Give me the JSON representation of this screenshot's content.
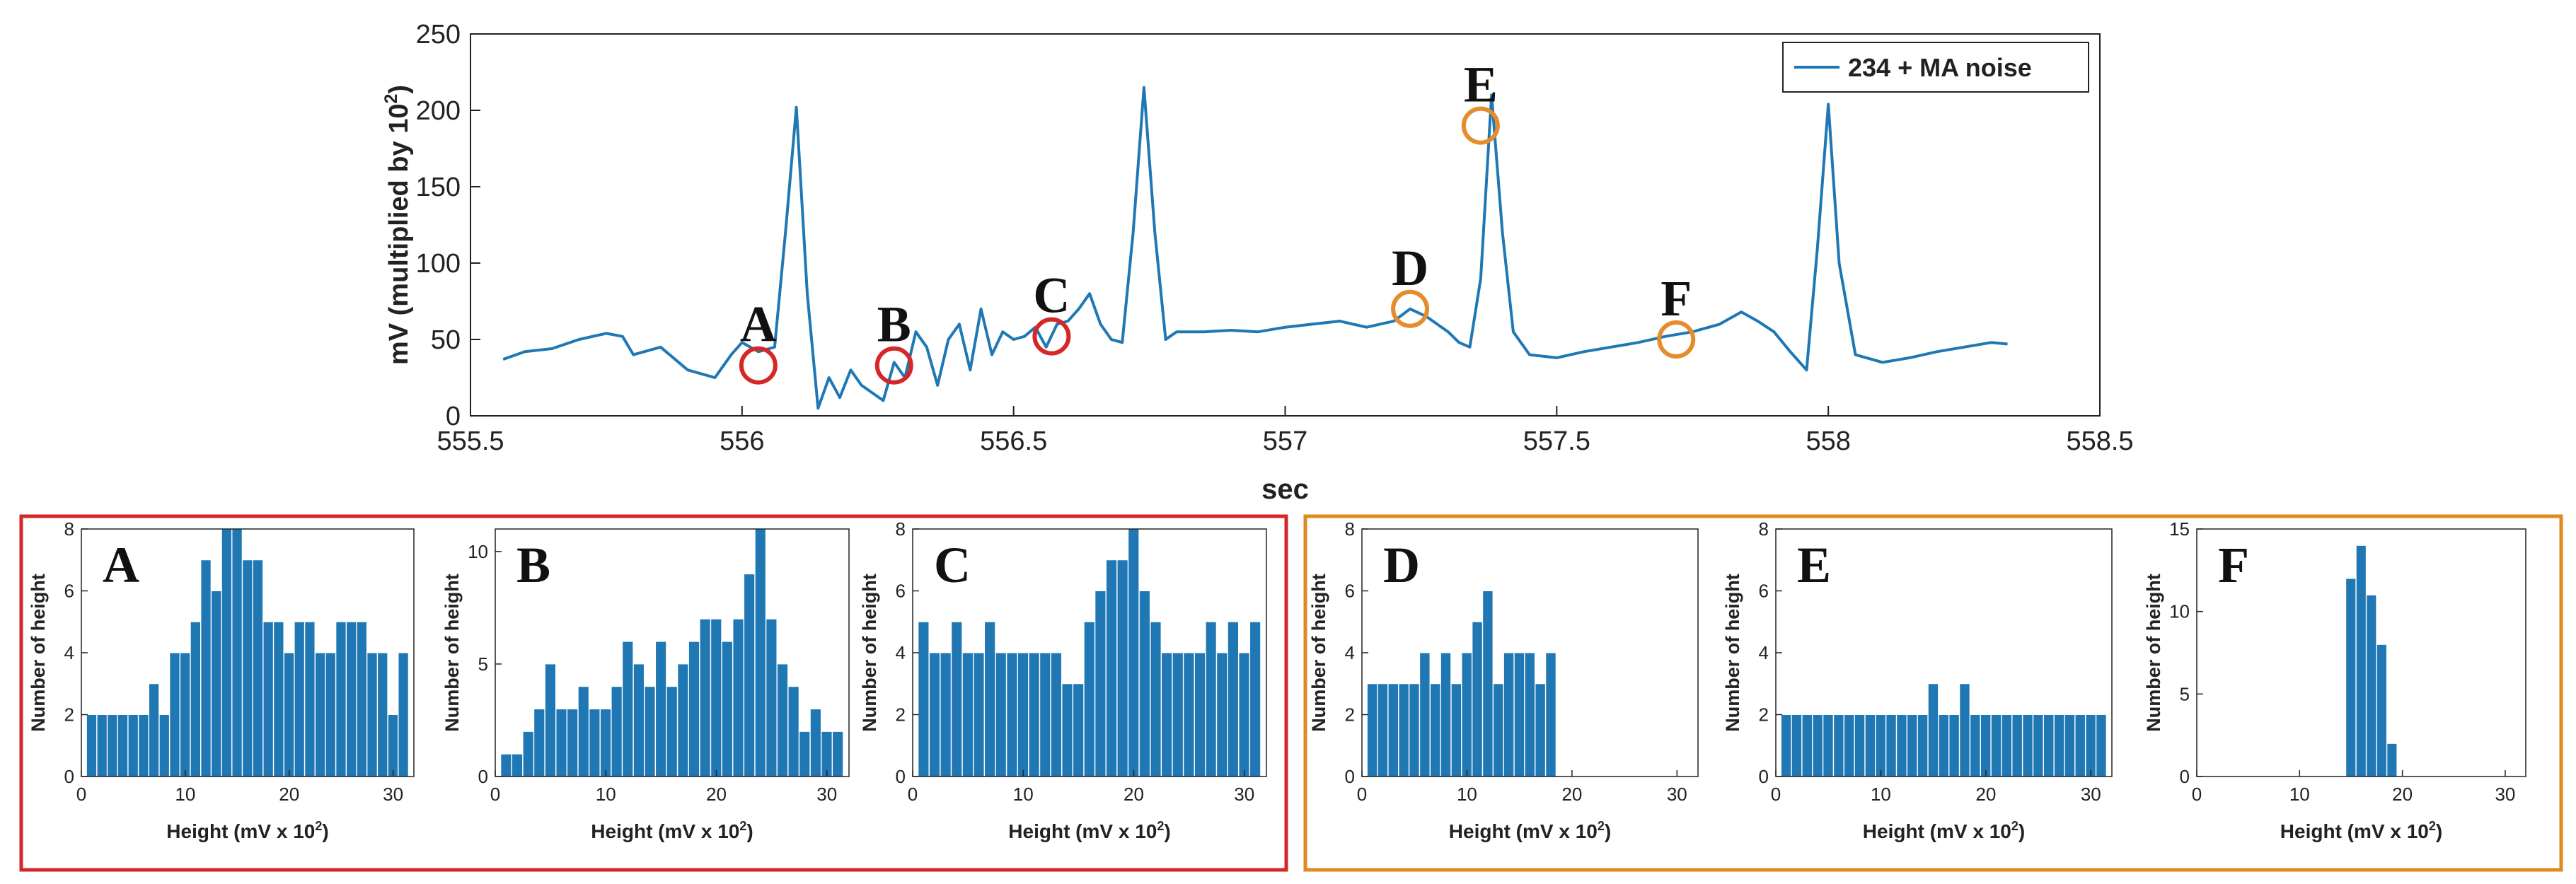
{
  "colors": {
    "series": "#1f77b4",
    "red_marker": "#d62728",
    "orange_marker": "#e58c2c",
    "axis": "#222222",
    "frame_red": "#d62728",
    "frame_orange": "#e08a1e"
  },
  "chart_data": [
    {
      "id": "main",
      "type": "line",
      "title": "",
      "xlabel": "sec",
      "ylabel_main": "mV (multiplied by 10",
      "ylabel_exp": "2",
      "ylabel_close": ")",
      "xlim": [
        555.5,
        558.5
      ],
      "ylim": [
        0,
        250
      ],
      "xticks": [
        555.5,
        556,
        556.5,
        557,
        557.5,
        558,
        558.5
      ],
      "xtick_labels": [
        "555.5",
        "556",
        "556.5",
        "557",
        "557.5",
        "558",
        "558.5"
      ],
      "yticks": [
        0,
        50,
        100,
        150,
        200,
        250
      ],
      "ytick_labels": [
        "0",
        "50",
        "100",
        "150",
        "200",
        "250"
      ],
      "legend": {
        "position": "top-right",
        "label": "234 + MA noise"
      },
      "series": [
        {
          "name": "234 + MA noise",
          "x": [
            555.56,
            555.6,
            555.65,
            555.7,
            555.75,
            555.78,
            555.8,
            555.85,
            555.9,
            555.95,
            555.98,
            556.0,
            556.03,
            556.06,
            556.08,
            556.1,
            556.12,
            556.14,
            556.16,
            556.18,
            556.2,
            556.22,
            556.24,
            556.26,
            556.28,
            556.3,
            556.32,
            556.34,
            556.36,
            556.38,
            556.4,
            556.42,
            556.44,
            556.46,
            556.48,
            556.5,
            556.52,
            556.54,
            556.56,
            556.58,
            556.6,
            556.62,
            556.64,
            556.66,
            556.68,
            556.7,
            556.72,
            556.74,
            556.76,
            556.78,
            556.8,
            556.85,
            556.9,
            556.95,
            557.0,
            557.05,
            557.1,
            557.15,
            557.2,
            557.23,
            557.26,
            557.3,
            557.32,
            557.34,
            557.36,
            557.38,
            557.4,
            557.42,
            557.45,
            557.5,
            557.55,
            557.6,
            557.65,
            557.7,
            557.75,
            557.8,
            557.84,
            557.87,
            557.9,
            557.93,
            557.96,
            557.98,
            558.0,
            558.02,
            558.05,
            558.1,
            558.15,
            558.2,
            558.25,
            558.3,
            558.33
          ],
          "y": [
            37,
            42,
            44,
            50,
            54,
            52,
            40,
            45,
            30,
            25,
            40,
            48,
            42,
            45,
            120,
            202,
            80,
            5,
            25,
            12,
            30,
            20,
            15,
            10,
            35,
            25,
            55,
            45,
            20,
            50,
            60,
            30,
            70,
            40,
            55,
            50,
            52,
            58,
            45,
            60,
            62,
            70,
            80,
            60,
            50,
            48,
            120,
            215,
            120,
            50,
            55,
            55,
            56,
            55,
            58,
            60,
            62,
            58,
            62,
            70,
            65,
            55,
            48,
            45,
            90,
            210,
            120,
            55,
            40,
            38,
            42,
            45,
            48,
            52,
            55,
            60,
            68,
            62,
            55,
            42,
            30,
            110,
            204,
            100,
            40,
            35,
            38,
            42,
            45,
            48,
            47
          ]
        }
      ],
      "annotations": [
        {
          "label": "A",
          "x": 556.03,
          "y": 33,
          "group": "red"
        },
        {
          "label": "B",
          "x": 556.28,
          "y": 33,
          "group": "red"
        },
        {
          "label": "C",
          "x": 556.57,
          "y": 52,
          "group": "red"
        },
        {
          "label": "D",
          "x": 557.23,
          "y": 70,
          "group": "orange"
        },
        {
          "label": "E",
          "x": 557.36,
          "y": 190,
          "group": "orange"
        },
        {
          "label": "F",
          "x": 557.72,
          "y": 50,
          "group": "orange"
        }
      ]
    },
    {
      "id": "hist-A",
      "type": "bar",
      "panel_label": "A",
      "group": "red",
      "xlabel_main": "Height (mV x 10",
      "xlabel_exp": "2",
      "xlabel_close": ")",
      "ylabel": "Number of height",
      "xlim": [
        0,
        32
      ],
      "ylim": [
        0,
        8
      ],
      "xticks": [
        0,
        10,
        20,
        30
      ],
      "xtick_labels": [
        "0",
        "10",
        "20",
        "30"
      ],
      "yticks": [
        0,
        2,
        4,
        6,
        8
      ],
      "ytick_labels": [
        "0",
        "2",
        "4",
        "6",
        "8"
      ],
      "x": [
        1,
        2,
        3,
        4,
        5,
        6,
        7,
        8,
        9,
        10,
        11,
        12,
        13,
        14,
        15,
        16,
        17,
        18,
        19,
        20,
        21,
        22,
        23,
        24,
        25,
        26,
        27,
        28,
        29,
        30,
        31
      ],
      "values": [
        2,
        2,
        2,
        2,
        2,
        2,
        3,
        2,
        4,
        4,
        5,
        7,
        6,
        8,
        8,
        7,
        7,
        5,
        5,
        4,
        5,
        5,
        4,
        4,
        5,
        5,
        5,
        4,
        4,
        2,
        4
      ]
    },
    {
      "id": "hist-B",
      "type": "bar",
      "panel_label": "B",
      "group": "red",
      "xlabel_main": "Height (mV x 10",
      "xlabel_exp": "2",
      "xlabel_close": ")",
      "ylabel": "Number of height",
      "xlim": [
        0,
        32
      ],
      "ylim": [
        0,
        11
      ],
      "xticks": [
        0,
        10,
        20,
        30
      ],
      "xtick_labels": [
        "0",
        "10",
        "20",
        "30"
      ],
      "yticks": [
        0,
        5,
        10
      ],
      "ytick_labels": [
        "0",
        "5",
        "10"
      ],
      "x": [
        1,
        2,
        3,
        4,
        5,
        6,
        7,
        8,
        9,
        10,
        11,
        12,
        13,
        14,
        15,
        16,
        17,
        18,
        19,
        20,
        21,
        22,
        23,
        24,
        25,
        26,
        27,
        28,
        29,
        30,
        31
      ],
      "values": [
        1,
        1,
        2,
        3,
        5,
        3,
        3,
        4,
        3,
        3,
        4,
        6,
        5,
        4,
        6,
        4,
        5,
        6,
        7,
        7,
        6,
        7,
        9,
        11,
        7,
        5,
        4,
        2,
        3,
        2,
        2
      ]
    },
    {
      "id": "hist-C",
      "type": "bar",
      "panel_label": "C",
      "group": "red",
      "xlabel_main": "Height (mV x 10",
      "xlabel_exp": "2",
      "xlabel_close": ")",
      "ylabel": "Number of height",
      "xlim": [
        0,
        32
      ],
      "ylim": [
        0,
        8
      ],
      "xticks": [
        0,
        10,
        20,
        30
      ],
      "xtick_labels": [
        "0",
        "10",
        "20",
        "30"
      ],
      "yticks": [
        0,
        2,
        4,
        6,
        8
      ],
      "ytick_labels": [
        "0",
        "2",
        "4",
        "6",
        "8"
      ],
      "x": [
        1,
        2,
        3,
        4,
        5,
        6,
        7,
        8,
        9,
        10,
        11,
        12,
        13,
        14,
        15,
        16,
        17,
        18,
        19,
        20,
        21,
        22,
        23,
        24,
        25,
        26,
        27,
        28,
        29,
        30,
        31
      ],
      "values": [
        5,
        4,
        4,
        5,
        4,
        4,
        5,
        4,
        4,
        4,
        4,
        4,
        4,
        3,
        3,
        5,
        6,
        7,
        7,
        8,
        6,
        5,
        4,
        4,
        4,
        4,
        5,
        4,
        5,
        4,
        5
      ]
    },
    {
      "id": "hist-D",
      "type": "bar",
      "panel_label": "D",
      "group": "orange",
      "xlabel_main": "Height (mV x 10",
      "xlabel_exp": "2",
      "xlabel_close": ")",
      "ylabel": "Number of height",
      "xlim": [
        0,
        32
      ],
      "ylim": [
        0,
        8
      ],
      "xticks": [
        0,
        10,
        20,
        30
      ],
      "xtick_labels": [
        "0",
        "10",
        "20",
        "30"
      ],
      "yticks": [
        0,
        2,
        4,
        6,
        8
      ],
      "ytick_labels": [
        "0",
        "2",
        "4",
        "6",
        "8"
      ],
      "x": [
        1,
        2,
        3,
        4,
        5,
        6,
        7,
        8,
        9,
        10,
        11,
        12,
        13,
        14,
        15,
        16,
        17,
        18
      ],
      "values": [
        3,
        3,
        3,
        3,
        3,
        4,
        3,
        4,
        3,
        4,
        5,
        6,
        3,
        4,
        4,
        4,
        3,
        4
      ]
    },
    {
      "id": "hist-E",
      "type": "bar",
      "panel_label": "E",
      "group": "orange",
      "xlabel_main": "Height (mV x 10",
      "xlabel_exp": "2",
      "xlabel_close": ")",
      "ylabel": "Number of height",
      "xlim": [
        0,
        32
      ],
      "ylim": [
        0,
        8
      ],
      "xticks": [
        0,
        10,
        20,
        30
      ],
      "xtick_labels": [
        "0",
        "10",
        "20",
        "30"
      ],
      "yticks": [
        0,
        2,
        4,
        6,
        8
      ],
      "ytick_labels": [
        "0",
        "2",
        "4",
        "6",
        "8"
      ],
      "x": [
        1,
        2,
        3,
        4,
        5,
        6,
        7,
        8,
        9,
        10,
        11,
        12,
        13,
        14,
        15,
        16,
        17,
        18,
        19,
        20,
        21,
        22,
        23,
        24,
        25,
        26,
        27,
        28,
        29,
        30,
        31
      ],
      "values": [
        2,
        2,
        2,
        2,
        2,
        2,
        2,
        2,
        2,
        2,
        2,
        2,
        2,
        2,
        3,
        2,
        2,
        3,
        2,
        2,
        2,
        2,
        2,
        2,
        2,
        2,
        2,
        2,
        2,
        2,
        2
      ]
    },
    {
      "id": "hist-F",
      "type": "bar",
      "panel_label": "F",
      "group": "orange",
      "xlabel_main": "Height (mV x 10",
      "xlabel_exp": "2",
      "xlabel_close": ")",
      "ylabel": "Number of height",
      "xlim": [
        0,
        32
      ],
      "ylim": [
        0,
        15
      ],
      "xticks": [
        0,
        10,
        20,
        30
      ],
      "xtick_labels": [
        "0",
        "10",
        "20",
        "30"
      ],
      "yticks": [
        0,
        5,
        10,
        15
      ],
      "ytick_labels": [
        "0",
        "5",
        "10",
        "15"
      ],
      "x": [
        15,
        16,
        17,
        18,
        19
      ],
      "values": [
        12,
        14,
        11,
        8,
        2
      ]
    }
  ]
}
